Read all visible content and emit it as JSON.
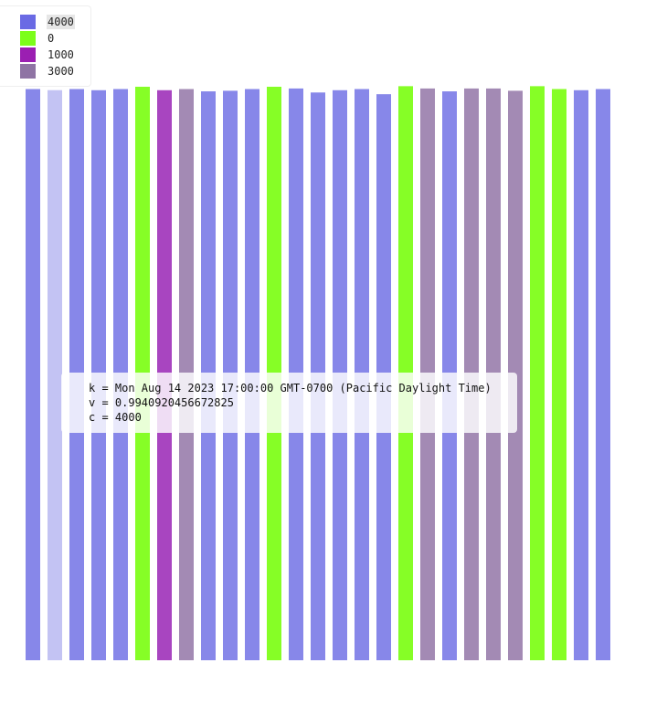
{
  "colors": {
    "4000": "#8787e9",
    "4000_highlight": "#c3c3f3",
    "0": "#86fe26",
    "1000": "#a845c0",
    "3000": "#a38ab4"
  },
  "legend": {
    "items": [
      {
        "label": "4000",
        "color": "#6a6ae4",
        "active": true
      },
      {
        "label": "0",
        "color": "#7cfe1a"
      },
      {
        "label": "1000",
        "color": "#9b1fb2"
      },
      {
        "label": "3000",
        "color": "#8f74a4"
      }
    ]
  },
  "tooltip": {
    "line_k": "k = Mon Aug 14 2023 17:00:00 GMT-0700 (Pacific Daylight Time)",
    "line_v": "v = 0.9940920456672825",
    "line_c": "c = 4000"
  },
  "chart_data": {
    "type": "bar",
    "ylim": [
      0,
      1
    ],
    "highlighted_index": 1,
    "bars": [
      {
        "v": 0.996,
        "c": "4000"
      },
      {
        "v": 0.9940920456672825,
        "c": "4000"
      },
      {
        "v": 0.996,
        "c": "4000"
      },
      {
        "v": 0.994,
        "c": "4000"
      },
      {
        "v": 0.996,
        "c": "4000"
      },
      {
        "v": 1.0,
        "c": "0"
      },
      {
        "v": 0.994,
        "c": "1000"
      },
      {
        "v": 0.996,
        "c": "3000"
      },
      {
        "v": 0.992,
        "c": "4000"
      },
      {
        "v": 0.993,
        "c": "4000"
      },
      {
        "v": 0.996,
        "c": "4000"
      },
      {
        "v": 1.0,
        "c": "0"
      },
      {
        "v": 0.997,
        "c": "4000"
      },
      {
        "v": 0.99,
        "c": "4000"
      },
      {
        "v": 0.994,
        "c": "4000"
      },
      {
        "v": 0.996,
        "c": "4000"
      },
      {
        "v": 0.987,
        "c": "4000"
      },
      {
        "v": 1.001,
        "c": "0"
      },
      {
        "v": 0.997,
        "c": "3000"
      },
      {
        "v": 0.992,
        "c": "4000"
      },
      {
        "v": 0.997,
        "c": "3000"
      },
      {
        "v": 0.997,
        "c": "3000"
      },
      {
        "v": 0.993,
        "c": "3000"
      },
      {
        "v": 1.001,
        "c": "0"
      },
      {
        "v": 0.996,
        "c": "0"
      },
      {
        "v": 0.994,
        "c": "4000"
      },
      {
        "v": 0.996,
        "c": "4000"
      }
    ]
  }
}
